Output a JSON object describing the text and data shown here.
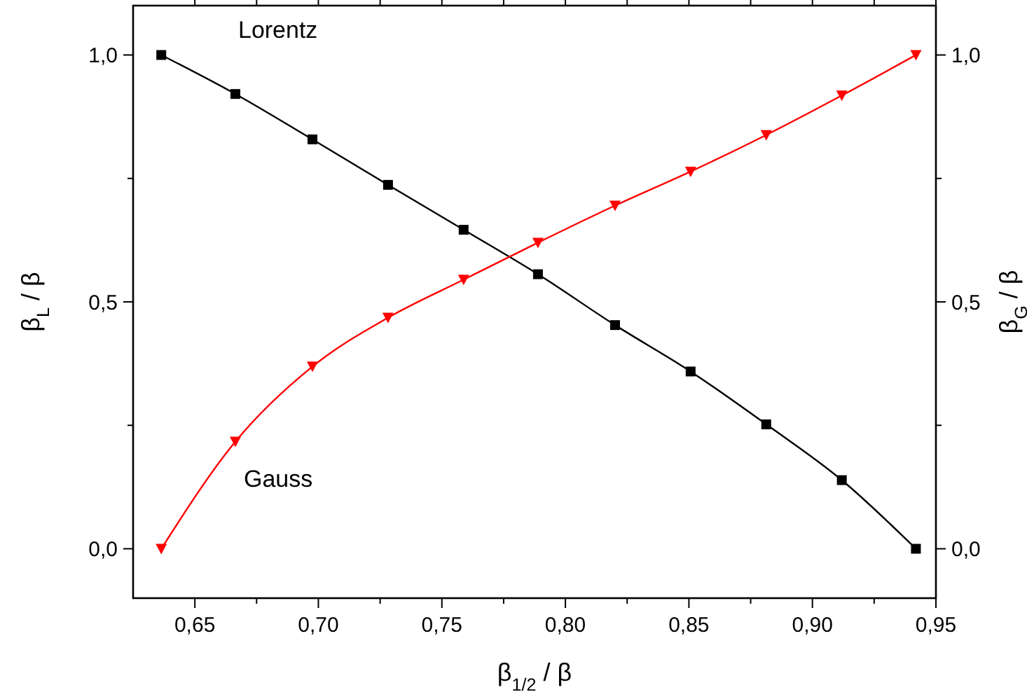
{
  "chart_data": {
    "type": "line",
    "xlabel": "β$_{1/2}$ / β",
    "ylabel": "β$_{L}$ / β",
    "y2label": "β$_{G}$ / β",
    "xlim": [
      0.625,
      0.95
    ],
    "xticks": [
      {
        "value": 0.65,
        "label": "0,65"
      },
      {
        "value": 0.675,
        "label": null
      },
      {
        "value": 0.7,
        "label": "0,70"
      },
      {
        "value": 0.725,
        "label": null
      },
      {
        "value": 0.75,
        "label": "0,75"
      },
      {
        "value": 0.775,
        "label": null
      },
      {
        "value": 0.8,
        "label": "0,80"
      },
      {
        "value": 0.825,
        "label": null
      },
      {
        "value": 0.85,
        "label": "0,85"
      },
      {
        "value": 0.875,
        "label": null
      },
      {
        "value": 0.9,
        "label": "0,90"
      },
      {
        "value": 0.925,
        "label": null
      },
      {
        "value": 0.95,
        "label": "0,95"
      }
    ],
    "ylim": [
      -0.1,
      1.1
    ],
    "yticks": [
      {
        "value": 0,
        "label": "0,0"
      },
      {
        "value": 0.25,
        "label": null
      },
      {
        "value": 0.5,
        "label": "0,5"
      },
      {
        "value": 0.75,
        "label": null
      },
      {
        "value": 1,
        "label": "1,0"
      }
    ],
    "y2lim": [
      -0.1,
      1.1
    ],
    "y2ticks": [
      {
        "value": 0,
        "label": "0,0"
      },
      {
        "value": 0.25,
        "label": null
      },
      {
        "value": 0.5,
        "label": "0,5"
      },
      {
        "value": 0.75,
        "label": null
      },
      {
        "value": 1,
        "label": "1,0"
      }
    ],
    "grid": false,
    "series": [
      {
        "name": "Lorentz",
        "color": "#000000",
        "marker": "square",
        "x": [
          0.6364,
          0.6664,
          0.6976,
          0.7282,
          0.7588,
          0.7889,
          0.8201,
          0.8507,
          0.8813,
          0.9119,
          0.9419
        ],
        "values": [
          1.0,
          0.921,
          0.829,
          0.737,
          0.646,
          0.556,
          0.453,
          0.359,
          0.252,
          0.139,
          0.0
        ]
      },
      {
        "name": "Gauss",
        "color": "#ff0000",
        "marker": "triangle",
        "x": [
          0.6364,
          0.6664,
          0.6976,
          0.7282,
          0.7588,
          0.7889,
          0.8201,
          0.8507,
          0.8813,
          0.9119,
          0.9419
        ],
        "values": [
          0.0,
          0.217,
          0.369,
          0.468,
          0.545,
          0.62,
          0.695,
          0.764,
          0.838,
          0.918,
          1.0
        ]
      }
    ]
  }
}
